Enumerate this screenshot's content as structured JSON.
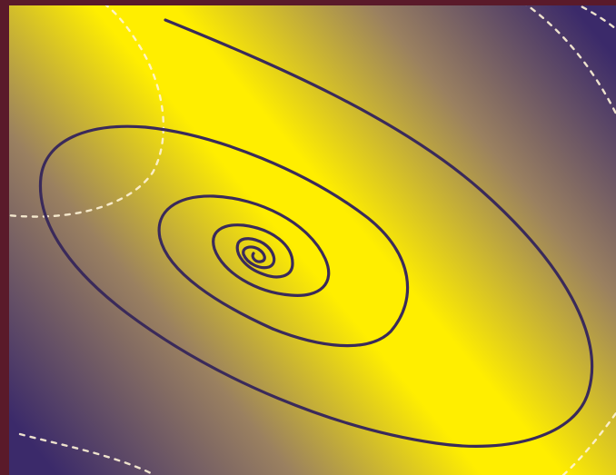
{
  "figure": {
    "kind": "spiral phase portrait over a diagonal yellow–purple gradient field",
    "colors": {
      "frame": "#5a1a2a",
      "field_high": "#ffee00",
      "field_mid": "#9a8060",
      "field_low": "#3b2a6a",
      "trajectory": "#3a2a5a",
      "dashed_contours": "#fff4d8"
    },
    "trajectory": {
      "shape": "inward spiral",
      "turns": 5
    },
    "contours": {
      "style": "dashed",
      "count": 4
    }
  }
}
